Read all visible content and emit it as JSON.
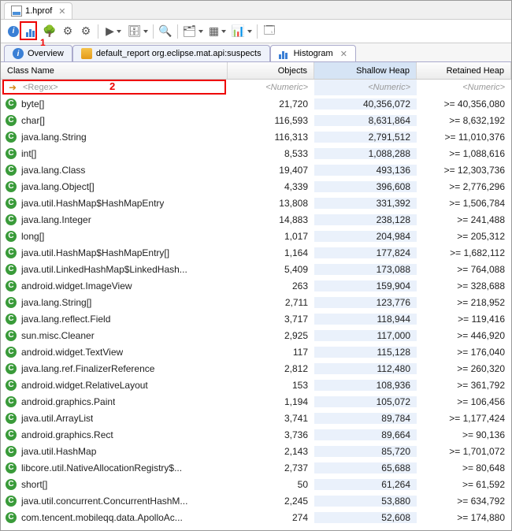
{
  "file_tab": {
    "title": "1.hprof",
    "icon": "chart-icon"
  },
  "toolbar_icons": [
    "info",
    "histogram",
    "tree",
    "gear1",
    "gear2",
    "run",
    "db",
    "magnify",
    "stack",
    "grid",
    "pie",
    "window"
  ],
  "annotation1": "1",
  "annotation2": "2",
  "sub_tabs": [
    {
      "icon": "info-icon",
      "label": "Overview",
      "active": false
    },
    {
      "icon": "ql-icon",
      "label": "default_report  org.eclipse.mat.api:suspects",
      "active": false
    },
    {
      "icon": "histo",
      "label": "Histogram",
      "active": true,
      "closable": true
    }
  ],
  "columns": {
    "name": "Class Name",
    "objects": "Objects",
    "shallow": "Shallow Heap",
    "retained": "Retained Heap"
  },
  "filter_row": {
    "regex_placeholder": "<Regex>",
    "numeric_placeholder": "<Numeric>"
  },
  "rows": [
    {
      "name": "byte[]",
      "objects": "21,720",
      "shallow": "40,356,072",
      "retained": ">= 40,356,080"
    },
    {
      "name": "char[]",
      "objects": "116,593",
      "shallow": "8,631,864",
      "retained": ">= 8,632,192"
    },
    {
      "name": "java.lang.String",
      "objects": "116,313",
      "shallow": "2,791,512",
      "retained": ">= 11,010,376"
    },
    {
      "name": "int[]",
      "objects": "8,533",
      "shallow": "1,088,288",
      "retained": ">= 1,088,616"
    },
    {
      "name": "java.lang.Class",
      "objects": "19,407",
      "shallow": "493,136",
      "retained": ">= 12,303,736"
    },
    {
      "name": "java.lang.Object[]",
      "objects": "4,339",
      "shallow": "396,608",
      "retained": ">= 2,776,296"
    },
    {
      "name": "java.util.HashMap$HashMapEntry",
      "objects": "13,808",
      "shallow": "331,392",
      "retained": ">= 1,506,784"
    },
    {
      "name": "java.lang.Integer",
      "objects": "14,883",
      "shallow": "238,128",
      "retained": ">= 241,488"
    },
    {
      "name": "long[]",
      "objects": "1,017",
      "shallow": "204,984",
      "retained": ">= 205,312"
    },
    {
      "name": "java.util.HashMap$HashMapEntry[]",
      "objects": "1,164",
      "shallow": "177,824",
      "retained": ">= 1,682,112"
    },
    {
      "name": "java.util.LinkedHashMap$LinkedHash...",
      "objects": "5,409",
      "shallow": "173,088",
      "retained": ">= 764,088"
    },
    {
      "name": "android.widget.ImageView",
      "objects": "263",
      "shallow": "159,904",
      "retained": ">= 328,688"
    },
    {
      "name": "java.lang.String[]",
      "objects": "2,711",
      "shallow": "123,776",
      "retained": ">= 218,952"
    },
    {
      "name": "java.lang.reflect.Field",
      "objects": "3,717",
      "shallow": "118,944",
      "retained": ">= 119,416"
    },
    {
      "name": "sun.misc.Cleaner",
      "objects": "2,925",
      "shallow": "117,000",
      "retained": ">= 446,920"
    },
    {
      "name": "android.widget.TextView",
      "objects": "117",
      "shallow": "115,128",
      "retained": ">= 176,040"
    },
    {
      "name": "java.lang.ref.FinalizerReference",
      "objects": "2,812",
      "shallow": "112,480",
      "retained": ">= 260,320"
    },
    {
      "name": "android.widget.RelativeLayout",
      "objects": "153",
      "shallow": "108,936",
      "retained": ">= 361,792"
    },
    {
      "name": "android.graphics.Paint",
      "objects": "1,194",
      "shallow": "105,072",
      "retained": ">= 106,456"
    },
    {
      "name": "java.util.ArrayList",
      "objects": "3,741",
      "shallow": "89,784",
      "retained": ">= 1,177,424"
    },
    {
      "name": "android.graphics.Rect",
      "objects": "3,736",
      "shallow": "89,664",
      "retained": ">= 90,136"
    },
    {
      "name": "java.util.HashMap",
      "objects": "2,143",
      "shallow": "85,720",
      "retained": ">= 1,701,072"
    },
    {
      "name": "libcore.util.NativeAllocationRegistry$...",
      "objects": "2,737",
      "shallow": "65,688",
      "retained": ">= 80,648"
    },
    {
      "name": "short[]",
      "objects": "50",
      "shallow": "61,264",
      "retained": ">= 61,592"
    },
    {
      "name": "java.util.concurrent.ConcurrentHashM...",
      "objects": "2,245",
      "shallow": "53,880",
      "retained": ">= 634,792"
    },
    {
      "name": "com.tencent.mobileqq.data.ApolloAc...",
      "objects": "274",
      "shallow": "52,608",
      "retained": ">= 174,880"
    }
  ],
  "colors": {
    "highlight": "#e00",
    "class_icon_bg": "#3a9b3a",
    "shallow_col_bg": "#eaf1fb"
  }
}
